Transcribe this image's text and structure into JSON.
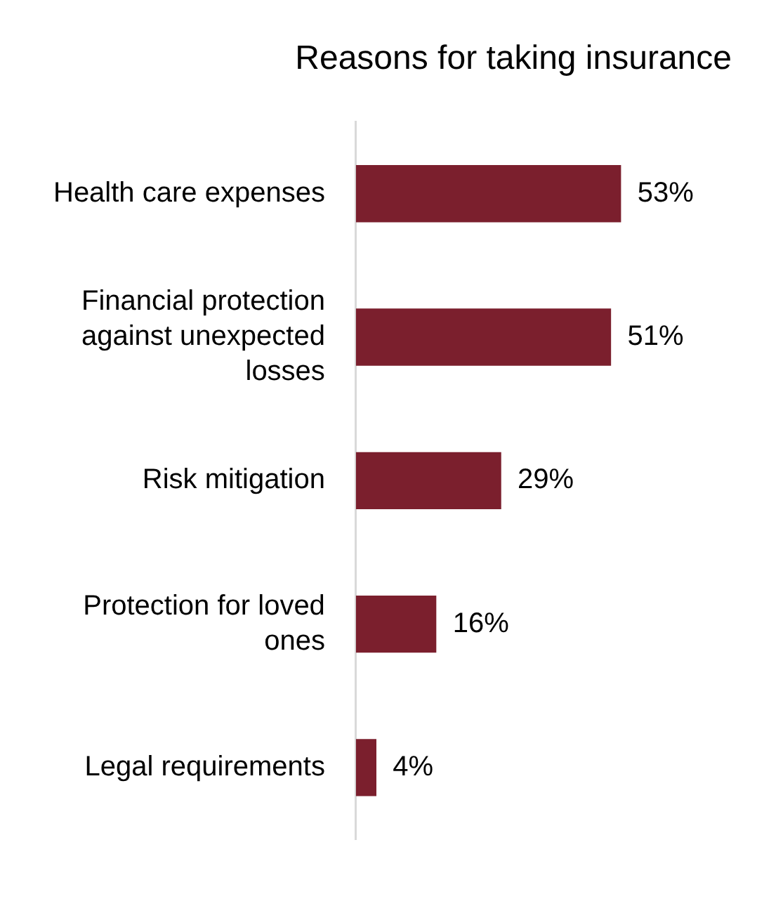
{
  "chart_data": {
    "type": "bar",
    "orientation": "horizontal",
    "title": "Reasons for taking insurance",
    "categories": [
      "Health care expenses",
      "Financial protection against unexpected losses",
      "Risk mitigation",
      "Protection for loved ones",
      "Legal requirements"
    ],
    "values": [
      53,
      51,
      29,
      16,
      4
    ],
    "color": "#7b1f2d",
    "data_labels": true,
    "value_labels": [
      "53%",
      "51%",
      "29%",
      "16%",
      "4%"
    ]
  }
}
